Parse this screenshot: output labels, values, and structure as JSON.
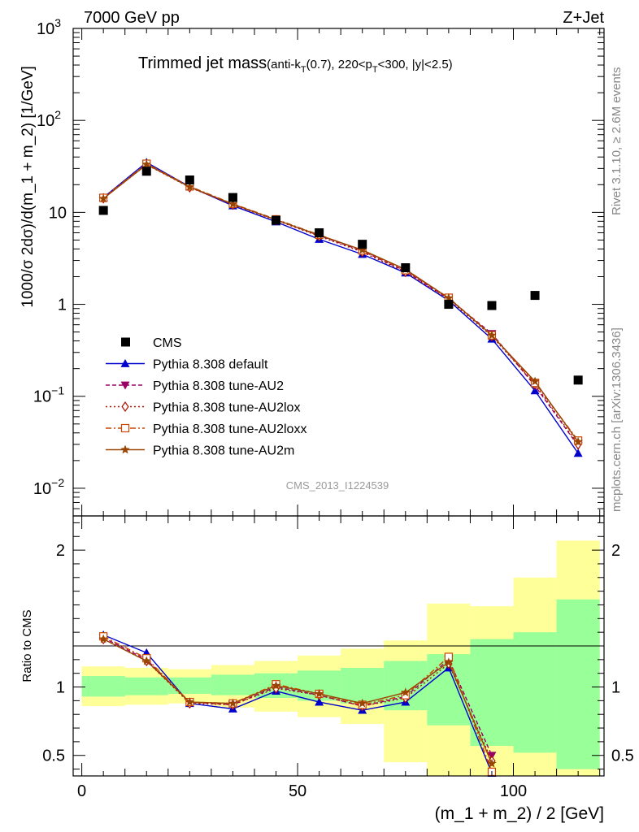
{
  "header": {
    "left_label": "7000 GeV pp",
    "right_label": "Z+Jet"
  },
  "side_labels": {
    "rivet": "Rivet 3.1.10, ≥ 2.6M events",
    "mcplots": "mcplots.cern.ch [arXiv:1306.3436]"
  },
  "chart_data": [
    {
      "type": "scatter",
      "panel": "main",
      "title_main": "Trimmed jet mass",
      "title_sub_parts": [
        "(anti-k",
        "T",
        "(0.7), 220<p",
        "T",
        "<300, |y|<2.5)"
      ],
      "ylabel": "1000/σ 2dσ)/d(m_1 + m_2) [1/GeV]",
      "yscale": "log",
      "ylim": [
        0.005,
        1000
      ],
      "xlim": [
        -2,
        121
      ],
      "y_ticks": [
        {
          "v": 0.01,
          "base": "10",
          "exp": "−2"
        },
        {
          "v": 0.1,
          "base": "10",
          "exp": "−1"
        },
        {
          "v": 1,
          "base": "1",
          "exp": ""
        },
        {
          "v": 10,
          "base": "10",
          "exp": ""
        },
        {
          "v": 100,
          "base": "10",
          "exp": "2"
        },
        {
          "v": 1000,
          "base": "10",
          "exp": "3"
        }
      ],
      "watermark": "CMS_2013_I1224539",
      "x": [
        5,
        15,
        25,
        35,
        45,
        55,
        65,
        75,
        85,
        95,
        105,
        115
      ],
      "cms": [
        10.5,
        28.0,
        22.5,
        14.5,
        8.2,
        6.0,
        4.5,
        2.5,
        1.0,
        0.97,
        1.25,
        0.15
      ],
      "series": [
        {
          "name": "Pythia 8.308 default",
          "color": "#0000cc",
          "marker": "triangle",
          "dash": "",
          "values": [
            14.5,
            35.0,
            19.0,
            11.8,
            7.9,
            5.1,
            3.5,
            2.2,
            1.1,
            0.42,
            0.115,
            0.024
          ]
        },
        {
          "name": "Pythia 8.308 tune-AU2",
          "color": "#990066",
          "marker": "triangle-down",
          "dash": "5,3",
          "values": [
            14.3,
            33.5,
            18.8,
            12.2,
            8.3,
            5.6,
            3.8,
            2.3,
            1.15,
            0.48,
            0.13,
            0.029
          ]
        },
        {
          "name": "Pythia 8.308 tune-AU2lox",
          "color": "#aa1100",
          "marker": "diamond",
          "dash": "2,3",
          "values": [
            14.2,
            33.0,
            18.7,
            12.1,
            8.2,
            5.5,
            3.7,
            2.25,
            1.13,
            0.45,
            0.135,
            0.03
          ]
        },
        {
          "name": "Pythia 8.308 tune-AU2loxx",
          "color": "#cc4400",
          "marker": "square",
          "dash": "7,3,2,3",
          "values": [
            14.4,
            33.8,
            19.2,
            12.4,
            8.4,
            5.7,
            3.85,
            2.35,
            1.18,
            0.46,
            0.14,
            0.033
          ]
        },
        {
          "name": "Pythia 8.308 tune-AU2m",
          "color": "#994400",
          "marker": "star",
          "dash": "",
          "values": [
            14.1,
            33.2,
            18.9,
            12.3,
            8.3,
            5.65,
            3.9,
            2.4,
            1.17,
            0.46,
            0.145,
            0.032
          ]
        }
      ]
    },
    {
      "type": "line",
      "panel": "ratio",
      "ylabel": "Ratio to CMS",
      "xlabel": "(m_1 + m_2) / 2 [GeV]",
      "xlim": [
        -2,
        121
      ],
      "ylim": [
        0.35,
        2.25
      ],
      "x_ticks": [
        0,
        50,
        100
      ],
      "y_ticks": [
        0.5,
        1,
        2
      ],
      "bin_edges": [
        0,
        10,
        20,
        30,
        40,
        50,
        60,
        70,
        80,
        90,
        100,
        110,
        120
      ],
      "band_inner": [
        [
          0.93,
          1.08
        ],
        [
          0.94,
          1.07
        ],
        [
          0.95,
          1.07
        ],
        [
          0.94,
          1.09
        ],
        [
          0.92,
          1.1
        ],
        [
          0.9,
          1.12
        ],
        [
          0.88,
          1.14
        ],
        [
          0.83,
          1.19
        ],
        [
          0.72,
          1.24
        ],
        [
          0.57,
          1.35
        ],
        [
          0.52,
          1.4
        ],
        [
          0.4,
          1.64
        ]
      ],
      "band_outer": [
        [
          0.86,
          1.15
        ],
        [
          0.87,
          1.14
        ],
        [
          0.88,
          1.13
        ],
        [
          0.85,
          1.16
        ],
        [
          0.82,
          1.19
        ],
        [
          0.78,
          1.23
        ],
        [
          0.73,
          1.28
        ],
        [
          0.45,
          1.34
        ],
        [
          0.3,
          1.61
        ],
        [
          0.3,
          1.59
        ],
        [
          0.3,
          1.8
        ],
        [
          0.3,
          2.07
        ]
      ],
      "x": [
        5,
        15,
        25,
        35,
        45,
        55,
        65,
        75,
        85,
        95
      ],
      "series": [
        {
          "name": "Pythia 8.308 default",
          "values": [
            1.38,
            1.25,
            0.88,
            0.84,
            0.97,
            0.89,
            0.83,
            0.89,
            1.14,
            0.37
          ]
        },
        {
          "name": "Pythia 8.308 tune-AU2",
          "values": [
            1.36,
            1.2,
            0.89,
            0.87,
            1.0,
            0.94,
            0.86,
            0.93,
            1.2,
            0.5
          ]
        },
        {
          "name": "Pythia 8.308 tune-AU2lox",
          "values": [
            1.35,
            1.19,
            0.88,
            0.87,
            0.99,
            0.94,
            0.86,
            0.92,
            1.17,
            0.46
          ]
        },
        {
          "name": "Pythia 8.308 tune-AU2loxx",
          "values": [
            1.37,
            1.21,
            0.89,
            0.88,
            1.02,
            0.95,
            0.87,
            0.94,
            1.22,
            0.38
          ]
        },
        {
          "name": "Pythia 8.308 tune-AU2m",
          "values": [
            1.35,
            1.19,
            0.89,
            0.88,
            1.01,
            0.95,
            0.88,
            0.96,
            1.18,
            0.44
          ]
        }
      ]
    }
  ],
  "legend": {
    "data_label": "CMS"
  }
}
